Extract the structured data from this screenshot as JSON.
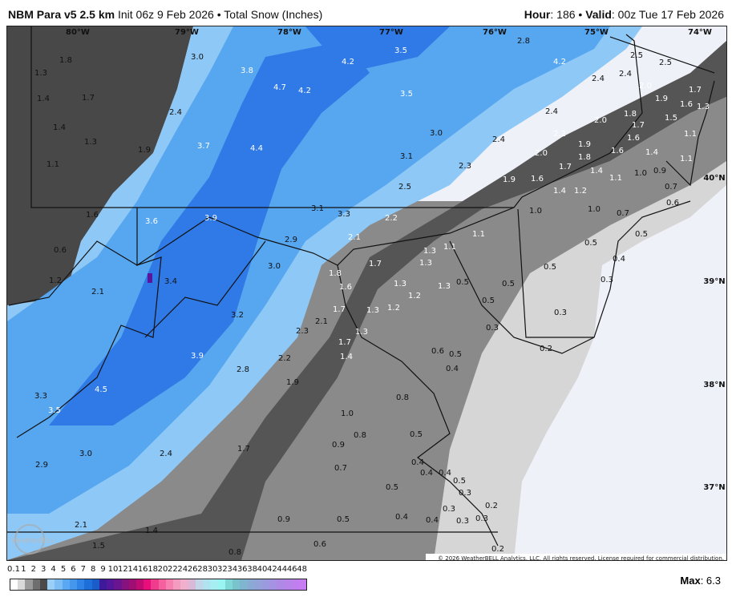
{
  "header": {
    "model": "NBM Para v5 2.5 km",
    "init": "Init 06z 9 Feb 2026",
    "separator": "•",
    "product": "Total Snow (Inches)",
    "hour_label": "Hour",
    "hour": "186",
    "valid_label": "Valid",
    "valid": "00z Tue 17 Feb 2026"
  },
  "map": {
    "longitudes": [
      "80°W",
      "79°W",
      "78°W",
      "77°W",
      "76°W",
      "75°W",
      "74°W"
    ],
    "latitudes": [
      "40°N",
      "39°N",
      "38°N",
      "37°N"
    ],
    "snow_labels": [
      "1.8",
      "1.3",
      "1.4",
      "1.7",
      "1.4",
      "1.3",
      "1.1",
      "1.9",
      "2.4",
      "3.0",
      "3.8",
      "4.7",
      "4.2",
      "4.2",
      "3.5",
      "3.5",
      "3.7",
      "4.4",
      "3.0",
      "3.1",
      "2.3",
      "2.5",
      "2.8",
      "4.2",
      "2.5",
      "2.5",
      "2.4",
      "2.4",
      "2.4",
      "2.2",
      "2.4",
      "2.0",
      "2.0",
      "1.9",
      "1.8",
      "1.7",
      "1.6",
      "1.9",
      "1.6",
      "1.4",
      "1.4",
      "1.2",
      "1.1",
      "1.0",
      "0.9",
      "1.1",
      "0.7",
      "0.6",
      "1.0",
      "0.7",
      "1.0",
      "1.8",
      "1.7",
      "1.6",
      "1.4",
      "2.0",
      "1.9",
      "1.7",
      "1.6",
      "1.3",
      "1.5",
      "1.1",
      "1.6",
      "0.6",
      "1.2",
      "2.1",
      "3.6",
      "3.9",
      "3.1",
      "3.3",
      "2.2",
      "2.9",
      "2.1",
      "3.0",
      "3.4",
      "3.2",
      "2.3",
      "2.1",
      "1.8",
      "1.7",
      "1.6",
      "1.7",
      "1.3",
      "1.3",
      "1.2",
      "1.2",
      "1.3",
      "1.3",
      "1.1",
      "1.1",
      "1.3",
      "0.5",
      "0.5",
      "0.3",
      "0.5",
      "0.5",
      "0.5",
      "0.5",
      "0.4",
      "0.3",
      "0.3",
      "0.2",
      "1.7",
      "1.4",
      "1.3",
      "0.6",
      "0.5",
      "0.4",
      "0.8",
      "3.9",
      "2.2",
      "2.8",
      "1.9",
      "4.5",
      "3.3",
      "3.5",
      "1.0",
      "0.8",
      "0.9",
      "0.5",
      "0.7",
      "0.4",
      "0.4",
      "0.4",
      "0.5",
      "0.5",
      "0.3",
      "0.2",
      "0.3",
      "0.4",
      "0.4",
      "0.3",
      "0.3",
      "0.2",
      "1.7",
      "2.4",
      "3.0",
      "2.9",
      "2.1",
      "1.4",
      "1.5",
      "0.9",
      "0.5",
      "0.8",
      "0.6"
    ],
    "colors": {
      "ocean": "#eef1f8",
      "light_gray": "#d6d6d6",
      "mid_gray": "#8a8a8a",
      "dark_gray": "#555555",
      "darker_gray": "#484848",
      "light_blue": "#8ec8f6",
      "blue": "#56a6f0",
      "deep_blue": "#2f7ae6",
      "max_purple": "#5a169a"
    },
    "logo": "WeatherBELL",
    "copyright": "© 2026 WeatherBELL Analytics, LLC. All rights reserved. License required for commercial distribution."
  },
  "legend": {
    "ticks": [
      "0.1",
      "1",
      "2",
      "3",
      "4",
      "5",
      "6",
      "7",
      "8",
      "9",
      "10",
      "12",
      "14",
      "16",
      "18",
      "20",
      "22",
      "24",
      "26",
      "28",
      "30",
      "32",
      "34",
      "36",
      "38",
      "40",
      "42",
      "44",
      "46",
      "48"
    ],
    "colors": [
      "#ffffff",
      "#d9d9d9",
      "#9a9a9a",
      "#6e6e6e",
      "#4a4a4a",
      "#9ad0f8",
      "#7dbdf6",
      "#5aa8f3",
      "#4597ee",
      "#2f82e6",
      "#1f6fdb",
      "#1a5cc8",
      "#3d1a99",
      "#54169a",
      "#6a148f",
      "#85127f",
      "#a00e73",
      "#be0c72",
      "#e80f7a",
      "#f03c8c",
      "#f7609e",
      "#f680b0",
      "#f39cc0",
      "#eeb0cc",
      "#d9b9d8",
      "#c2d6ea",
      "#b0e2f0",
      "#a6eef2",
      "#98f5f2",
      "#7fd8d5",
      "#78c3cc",
      "#80b5cf",
      "#8aa9d5",
      "#93a3da",
      "#9b9ade",
      "#a592e2",
      "#ae8ae6",
      "#b784ea",
      "#c07fee",
      "#c87cf2"
    ],
    "max_label": "Max",
    "max_value": "6.3"
  }
}
